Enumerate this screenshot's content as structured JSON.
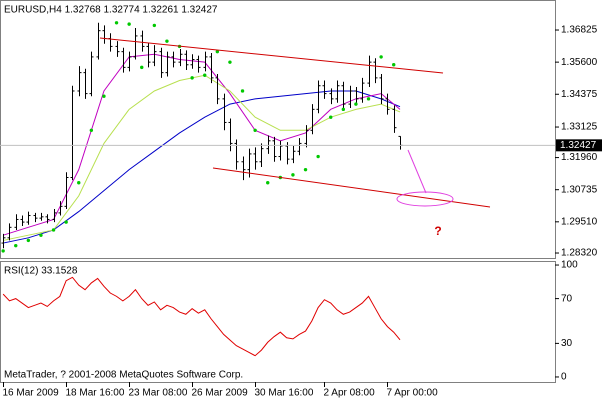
{
  "chart_data": [
    {
      "type": "candlestick",
      "title": "EURUSD,H4  1.32768 1.32774 1.32261 1.32427",
      "annotation": "?",
      "x": [
        0,
        1,
        2,
        3,
        4,
        5,
        6,
        7,
        8,
        9,
        10,
        11,
        12,
        13,
        14,
        15,
        16,
        17,
        18,
        19,
        20,
        21,
        22,
        23,
        24,
        25,
        26,
        27,
        28,
        29,
        30,
        31,
        32,
        33,
        34,
        35,
        36,
        37,
        38,
        39,
        40,
        41,
        42,
        43,
        44,
        45,
        46,
        47,
        48,
        49,
        50,
        51,
        52,
        53,
        54,
        55,
        56,
        57,
        58,
        59,
        60,
        61,
        62,
        63
      ],
      "open": [
        1.287,
        1.289,
        1.293,
        1.296,
        1.295,
        1.2975,
        1.2965,
        1.297,
        1.296,
        1.2985,
        1.301,
        1.312,
        1.345,
        1.352,
        1.344,
        1.358,
        1.368,
        1.365,
        1.362,
        1.36,
        1.354,
        1.358,
        1.366,
        1.362,
        1.356,
        1.36,
        1.352,
        1.358,
        1.356,
        1.359,
        1.355,
        1.357,
        1.354,
        1.358,
        1.35,
        1.342,
        1.333,
        1.325,
        1.318,
        1.315,
        1.321,
        1.318,
        1.323,
        1.326,
        1.32,
        1.324,
        1.319,
        1.322,
        1.325,
        1.33,
        1.338,
        1.347,
        1.344,
        1.342,
        1.347,
        1.34,
        1.345,
        1.342,
        1.348,
        1.356,
        1.35,
        1.342,
        1.338,
        1.32768
      ],
      "high": [
        1.2905,
        1.2945,
        1.298,
        1.2975,
        1.299,
        1.2985,
        1.2985,
        1.298,
        1.3,
        1.303,
        1.314,
        1.347,
        1.3545,
        1.3535,
        1.36,
        1.371,
        1.37,
        1.367,
        1.364,
        1.3615,
        1.36,
        1.369,
        1.368,
        1.3635,
        1.3625,
        1.3615,
        1.36,
        1.36,
        1.361,
        1.3605,
        1.359,
        1.3585,
        1.36,
        1.3595,
        1.3515,
        1.344,
        1.3345,
        1.3265,
        1.32,
        1.323,
        1.3235,
        1.325,
        1.328,
        1.3275,
        1.326,
        1.3255,
        1.324,
        1.327,
        1.332,
        1.34,
        1.349,
        1.349,
        1.346,
        1.349,
        1.3485,
        1.347,
        1.3465,
        1.35,
        1.3585,
        1.3575,
        1.3515,
        1.344,
        1.3395,
        1.32774
      ],
      "low": [
        1.285,
        1.288,
        1.292,
        1.2935,
        1.294,
        1.295,
        1.2955,
        1.2945,
        1.295,
        1.2975,
        1.3,
        1.311,
        1.343,
        1.342,
        1.343,
        1.357,
        1.363,
        1.36,
        1.358,
        1.352,
        1.3525,
        1.357,
        1.36,
        1.354,
        1.3545,
        1.35,
        1.3505,
        1.354,
        1.3545,
        1.353,
        1.3535,
        1.352,
        1.3525,
        1.348,
        1.34,
        1.33,
        1.322,
        1.315,
        1.311,
        1.312,
        1.315,
        1.316,
        1.321,
        1.318,
        1.3185,
        1.317,
        1.3175,
        1.3205,
        1.3235,
        1.3285,
        1.3365,
        1.342,
        1.34,
        1.3405,
        1.3385,
        1.3385,
        1.34,
        1.3405,
        1.3465,
        1.348,
        1.34,
        1.336,
        1.329,
        1.32261
      ],
      "close": [
        1.289,
        1.293,
        1.296,
        1.295,
        1.2975,
        1.2965,
        1.297,
        1.296,
        1.2985,
        1.301,
        1.312,
        1.345,
        1.352,
        1.344,
        1.358,
        1.368,
        1.365,
        1.362,
        1.36,
        1.354,
        1.358,
        1.366,
        1.362,
        1.356,
        1.36,
        1.352,
        1.358,
        1.356,
        1.359,
        1.355,
        1.357,
        1.354,
        1.358,
        1.35,
        1.342,
        1.333,
        1.325,
        1.318,
        1.315,
        1.321,
        1.318,
        1.323,
        1.326,
        1.32,
        1.324,
        1.319,
        1.322,
        1.325,
        1.33,
        1.338,
        1.347,
        1.344,
        1.342,
        1.347,
        1.34,
        1.345,
        1.342,
        1.348,
        1.356,
        1.35,
        1.342,
        1.338,
        1.331,
        1.32427
      ],
      "color": "#000000",
      "lines": [
        {
          "color": "#0000c8",
          "x": [
            0,
            4,
            8,
            12,
            16,
            20,
            24,
            28,
            32,
            36,
            40,
            44,
            48,
            52,
            56,
            60,
            63
          ],
          "values": [
            1.287,
            1.289,
            1.292,
            1.299,
            1.307,
            1.315,
            1.322,
            1.329,
            1.335,
            1.34,
            1.342,
            1.343,
            1.344,
            1.345,
            1.345,
            1.342,
            1.339
          ]
        },
        {
          "color": "#c000c0",
          "x": [
            0,
            4,
            8,
            12,
            16,
            20,
            24,
            28,
            32,
            36,
            40,
            44,
            48,
            52,
            56,
            60,
            63
          ],
          "values": [
            1.29,
            1.293,
            1.296,
            1.315,
            1.345,
            1.358,
            1.359,
            1.357,
            1.356,
            1.344,
            1.33,
            1.326,
            1.329,
            1.338,
            1.342,
            1.344,
            1.338
          ]
        },
        {
          "color": "#b8e050",
          "x": [
            0,
            4,
            8,
            12,
            16,
            20,
            24,
            28,
            32,
            36,
            40,
            44,
            48,
            52,
            56,
            60,
            63
          ],
          "values": [
            1.288,
            1.29,
            1.292,
            1.305,
            1.325,
            1.338,
            1.345,
            1.349,
            1.351,
            1.345,
            1.335,
            1.33,
            1.33,
            1.335,
            1.338,
            1.34,
            1.337
          ]
        }
      ],
      "sar": {
        "color": "#00c800",
        "x": [
          0,
          2,
          4,
          6,
          8,
          10,
          12,
          14,
          16,
          18,
          20,
          22,
          24,
          26,
          28,
          30,
          32,
          34,
          36,
          38,
          40,
          42,
          44,
          46,
          48,
          50,
          52,
          54,
          56,
          58,
          60,
          62
        ],
        "values": [
          1.284,
          1.286,
          1.288,
          1.29,
          1.292,
          1.295,
          1.31,
          1.33,
          1.343,
          1.371,
          1.3705,
          1.354,
          1.37,
          1.364,
          1.362,
          1.35,
          1.351,
          1.36,
          1.356,
          1.345,
          1.33,
          1.31,
          1.312,
          1.313,
          1.315,
          1.32,
          1.335,
          1.338,
          1.34,
          1.342,
          1.358,
          1.355
        ]
      },
      "xlim": [
        -0.5,
        87.6
      ],
      "ylim": [
        1.2813,
        1.3797
      ],
      "yticks": [
        1.36825,
        {
          "value": 1.356,
          "label": "1.35600"
        },
        1.34375,
        1.33125,
        {
          "value": 1.3196,
          "label": "1.31960"
        },
        1.30735,
        {
          "value": 1.2951,
          "label": "1.29510"
        },
        {
          "value": 1.2832,
          "label": "1.28320"
        }
      ]
    },
    {
      "type": "line",
      "title": "RSI(12) 33.1528",
      "copyright": "MetaTrader, ? 2001-2008 MetaQuotes Software Corp.",
      "color": "#e00000",
      "x": [
        0,
        1,
        2,
        3,
        4,
        5,
        6,
        7,
        8,
        9,
        10,
        11,
        12,
        13,
        14,
        15,
        16,
        17,
        18,
        19,
        20,
        21,
        22,
        23,
        24,
        25,
        26,
        27,
        28,
        29,
        30,
        31,
        32,
        33,
        34,
        35,
        36,
        37,
        38,
        39,
        40,
        41,
        42,
        43,
        44,
        45,
        46,
        47,
        48,
        49,
        50,
        51,
        52,
        53,
        54,
        55,
        56,
        57,
        58,
        59,
        60,
        61,
        62,
        63
      ],
      "values": [
        74,
        68,
        70,
        66,
        62,
        64,
        66,
        63,
        68,
        72,
        86,
        89,
        82,
        78,
        84,
        88,
        81,
        75,
        72,
        68,
        72,
        78,
        70,
        64,
        67,
        60,
        64,
        62,
        58,
        56,
        61,
        57,
        60,
        52,
        45,
        38,
        33,
        28,
        25,
        22,
        19,
        24,
        31,
        36,
        40,
        35,
        34,
        38,
        41,
        50,
        62,
        69,
        66,
        60,
        56,
        58,
        62,
        66,
        72,
        62,
        52,
        45,
        40,
        33.1528
      ],
      "xlim": [
        -0.5,
        87.6
      ],
      "ylim": [
        -4.5,
        103.6
      ],
      "yticks": [
        100,
        70,
        30,
        0
      ],
      "xticks": [
        {
          "value": 0,
          "label": "16 Mar 2009"
        },
        {
          "value": 10,
          "label": "18 Mar 16:00"
        },
        {
          "value": 20,
          "label": "23 Mar 08:00"
        },
        {
          "value": 30,
          "label": "26 Mar 2009"
        },
        {
          "value": 40,
          "label": "30 Mar 16:00"
        },
        {
          "value": 51,
          "label": "2 Apr 08:00"
        },
        {
          "value": 61,
          "label": "7 Apr 00:00"
        }
      ]
    }
  ]
}
